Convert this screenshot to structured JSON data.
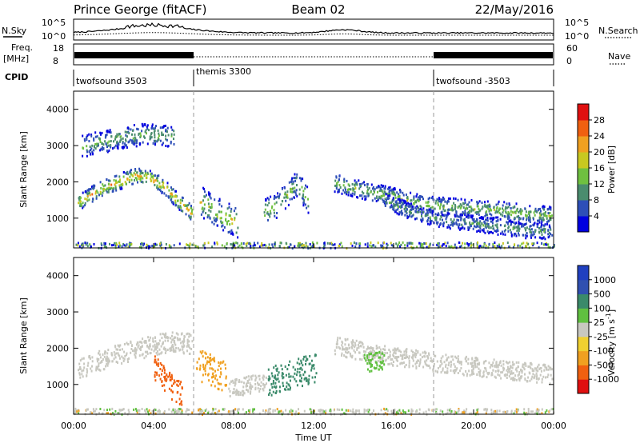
{
  "header": {
    "station": "Prince George (fitACF)",
    "beam": "Beam 02",
    "date": "22/May/2016"
  },
  "noise_panel": {
    "left_label": "N.Sky",
    "right_label": "N.Search",
    "left_ticks": [
      "10^5",
      "10^0"
    ],
    "right_ticks": [
      "10^5",
      "10^0"
    ]
  },
  "freq_panel": {
    "left_label_line1": "Freq.",
    "left_label_line2": "[MHz]",
    "right_label": "Nave",
    "left_ticks": [
      "18",
      "8"
    ],
    "right_ticks": [
      "60",
      "0"
    ]
  },
  "cpid": {
    "label": "CPID",
    "segments": [
      {
        "name": "twofsound 3503",
        "start_hour": 0,
        "end_hour": 6
      },
      {
        "name": "themis 3300",
        "start_hour": 6,
        "end_hour": 18
      },
      {
        "name": "twofsound -3503",
        "start_hour": 18,
        "end_hour": 24
      }
    ]
  },
  "power_panel": {
    "ylabel": "Slant Range [km]",
    "yticks": [
      1000,
      2000,
      3000,
      4000
    ],
    "ylim": [
      180,
      4500
    ],
    "colorbar_label": "Power [dB]",
    "colorbar_ticks": [
      "4",
      "8",
      "12",
      "16",
      "20",
      "24",
      "28"
    ],
    "colors": [
      "#0000e0",
      "#2e4fb8",
      "#4a8c6e",
      "#6fc040",
      "#c8c820",
      "#f0a020",
      "#f06010",
      "#e01010"
    ]
  },
  "velocity_panel": {
    "ylabel": "Slant Range [km]",
    "yticks": [
      1000,
      2000,
      3000,
      4000
    ],
    "ylim": [
      180,
      4500
    ],
    "colorbar_label": "Velocity [m s",
    "colorbar_label_sup": "-1",
    "colorbar_ticks": [
      "-1000",
      "-500",
      "-100",
      "-25",
      "25",
      "100",
      "500",
      "1000"
    ],
    "colors": [
      "#e01010",
      "#f06010",
      "#f0a020",
      "#f0d030",
      "#c8c8c0",
      "#60c040",
      "#3a8a6a",
      "#3050b0",
      "#2040c0"
    ]
  },
  "time_axis": {
    "label": "Time UT",
    "ticks": [
      "00:00",
      "04:00",
      "08:00",
      "12:00",
      "16:00",
      "20:00",
      "00:00"
    ]
  },
  "chart_data": {
    "type": "heatmap",
    "x_unit": "hours UT",
    "xlim": [
      0,
      24
    ],
    "power_scatter": [
      {
        "t0": 0.2,
        "t1": 5.9,
        "r_center": [
          1450,
          1700,
          1900,
          2050,
          2200,
          2150,
          1900,
          1500,
          1150
        ],
        "width_km": 220,
        "peak_db": 26
      },
      {
        "t0": 0.4,
        "t1": 5.0,
        "r_center": [
          3000,
          3100,
          3150,
          3250,
          3300,
          3350,
          3300,
          3300
        ],
        "width_km": 300,
        "peak_db": 16
      },
      {
        "t0": 6.3,
        "t1": 8.2,
        "r_center": [
          1500,
          1250,
          1050,
          900
        ],
        "width_km": 420,
        "peak_db": 22
      },
      {
        "t0": 9.5,
        "t1": 11.7,
        "r_center": [
          1200,
          1350,
          1650,
          2000,
          1500
        ],
        "width_km": 350,
        "peak_db": 18
      },
      {
        "t0": 13.0,
        "t1": 23.9,
        "r_center": [
          2000,
          1800,
          1650,
          1450,
          1350,
          1300,
          1250,
          1150,
          1100
        ],
        "width_km": 250,
        "peak_db": 18
      },
      {
        "t0": 15.5,
        "t1": 23.9,
        "r_center": [
          1500,
          1200,
          1000,
          900,
          800,
          700,
          650
        ],
        "width_km": 220,
        "peak_db": 14
      }
    ],
    "velocity_scatter": [
      {
        "t0": 0.2,
        "t1": 5.9,
        "r_center": [
          1450,
          1700,
          1900,
          2050,
          2200,
          2150
        ],
        "width_km": 280,
        "velocity": "25"
      },
      {
        "t0": 4.0,
        "t1": 5.4,
        "r_center": [
          1500,
          1200,
          900,
          800
        ],
        "width_km": 350,
        "velocity": "-500"
      },
      {
        "t0": 6.1,
        "t1": 7.6,
        "r_center": [
          1600,
          1400,
          1200
        ],
        "width_km": 450,
        "velocity": "-100"
      },
      {
        "t0": 7.7,
        "t1": 9.6,
        "r_center": [
          900,
          1000,
          1100
        ],
        "width_km": 250,
        "velocity": "25"
      },
      {
        "t0": 9.7,
        "t1": 12.1,
        "r_center": [
          1100,
          1300,
          1500
        ],
        "width_km": 400,
        "velocity": "500"
      },
      {
        "t0": 13.0,
        "t1": 23.9,
        "r_center": [
          2100,
          1900,
          1750,
          1600,
          1500,
          1400,
          1300
        ],
        "width_km": 260,
        "velocity": "25"
      },
      {
        "t0": 14.5,
        "t1": 15.5,
        "r_center": [
          1600,
          1700
        ],
        "width_km": 250,
        "velocity": "100"
      }
    ]
  }
}
